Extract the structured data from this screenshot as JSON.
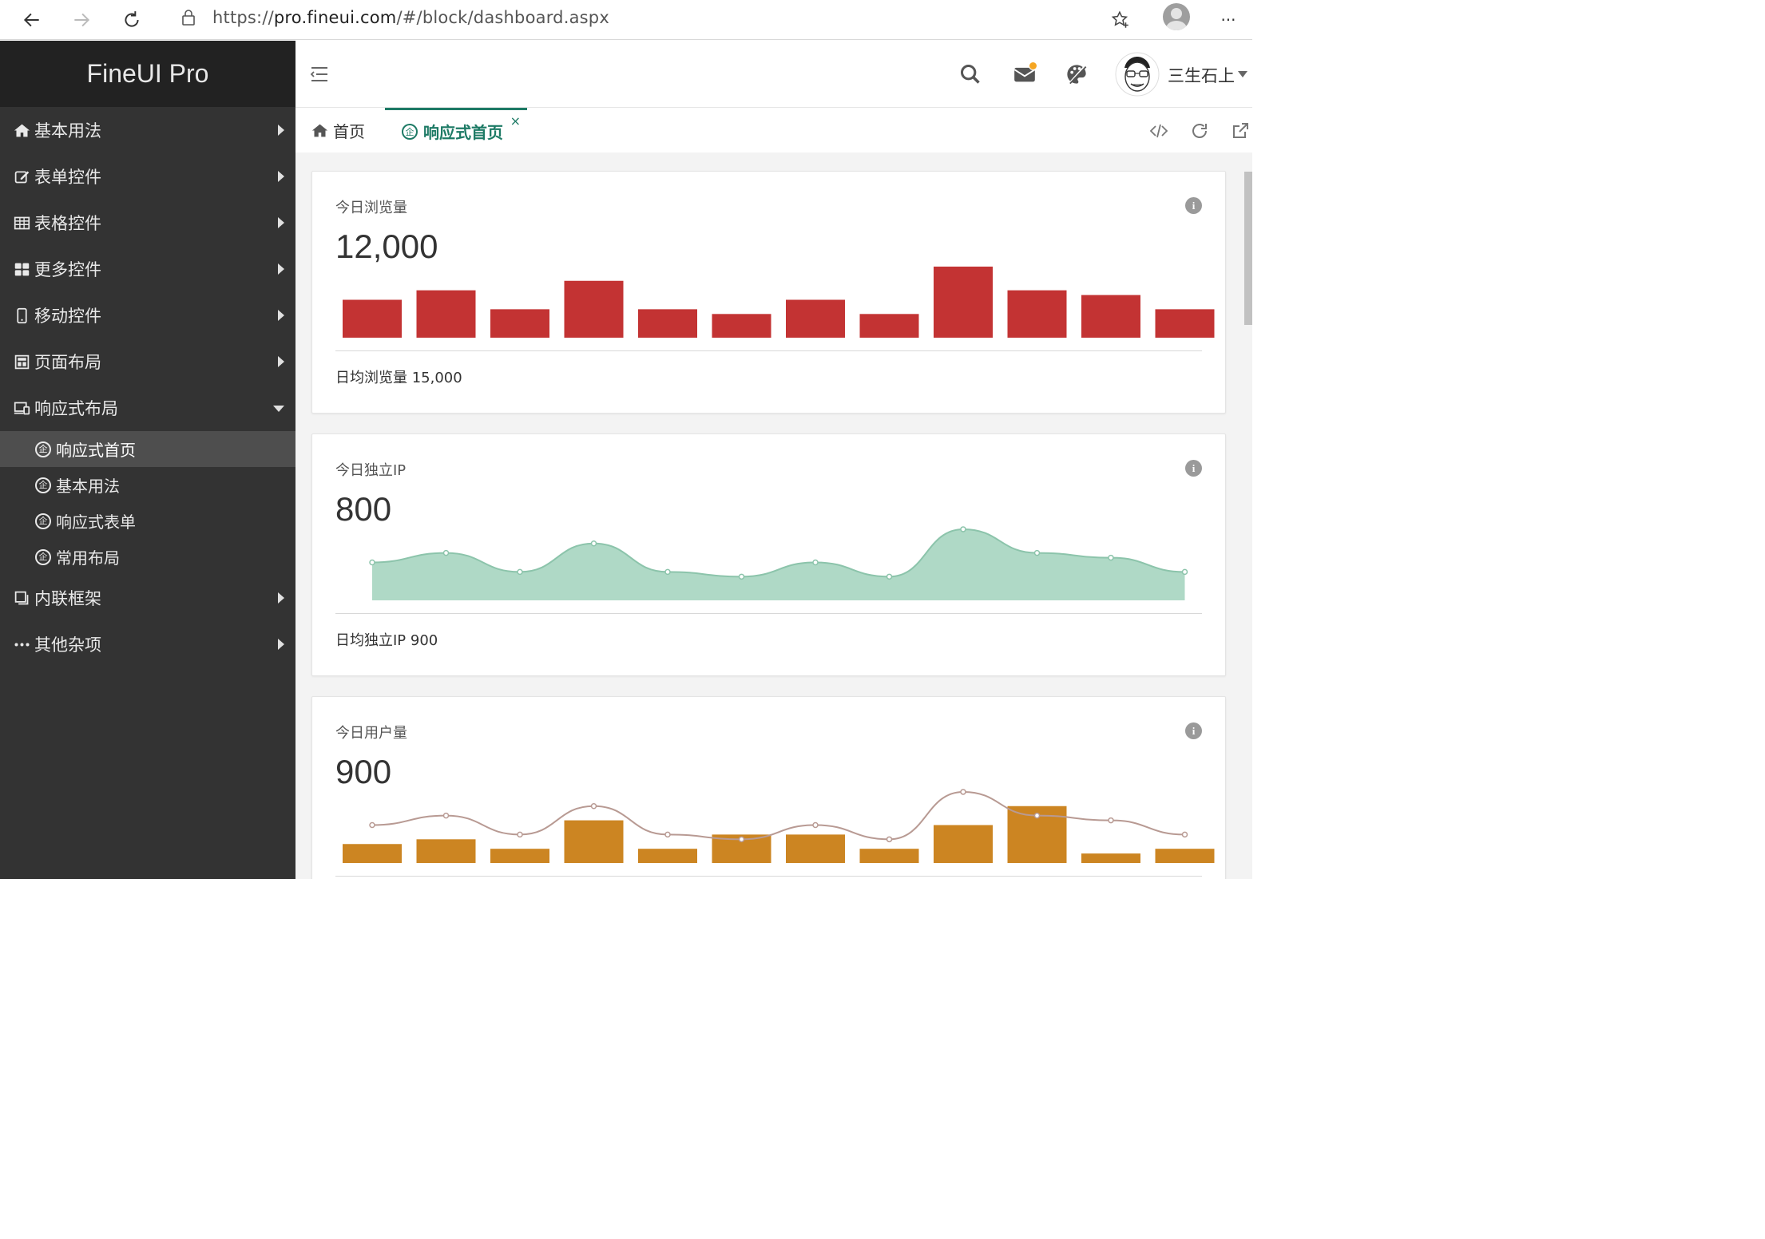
{
  "browser": {
    "url_prefix": "https://",
    "url_host": "pro.fineui.com",
    "url_path": "/#/block/dashboard.aspx",
    "menu_glyph": "···"
  },
  "sidebar": {
    "brand": "FineUI Pro",
    "items": [
      {
        "label": "基本用法",
        "icon": "home-icon"
      },
      {
        "label": "表单控件",
        "icon": "edit-icon"
      },
      {
        "label": "表格控件",
        "icon": "table-icon"
      },
      {
        "label": "更多控件",
        "icon": "grid-icon"
      },
      {
        "label": "移动控件",
        "icon": "mobile-icon"
      },
      {
        "label": "页面布局",
        "icon": "layout-icon"
      },
      {
        "label": "响应式布局",
        "icon": "responsive-icon"
      }
    ],
    "sub_items": [
      {
        "label": "响应式首页",
        "icon_glyph": "企"
      },
      {
        "label": "基本用法",
        "icon_glyph": "企"
      },
      {
        "label": "响应式表单",
        "icon_glyph": "企"
      },
      {
        "label": "常用布局",
        "icon_glyph": "企"
      }
    ],
    "items_after": [
      {
        "label": "内联框架",
        "icon": "window-icon"
      },
      {
        "label": "其他杂项",
        "icon": "more-icon"
      }
    ]
  },
  "header": {
    "user_name": "三生石上"
  },
  "tabs": {
    "home_label": "首页",
    "active_label": "响应式首页",
    "active_icon_glyph": "企",
    "close_glyph": "×"
  },
  "colors": {
    "accent": "#1d7a65",
    "bar_red": "#c33333",
    "area_green": "#afd9c6",
    "area_green_line": "#8cc4ab",
    "bar_orange": "#cc8522",
    "line_brown": "#b89a93"
  },
  "cards": [
    {
      "title": "今日浏览量",
      "value": "12,000",
      "footer": "日均浏览量 15,000",
      "info": "i"
    },
    {
      "title": "今日独立IP",
      "value": "800",
      "footer": "日均独立IP 900",
      "info": "i"
    },
    {
      "title": "今日用户量",
      "value": "900",
      "footer": "",
      "info": "i"
    }
  ],
  "chart_data": [
    {
      "type": "bar",
      "values": [
        8,
        10,
        6,
        12,
        6,
        5,
        8,
        5,
        15,
        10,
        9,
        6
      ],
      "ylim": [
        0,
        16
      ]
    },
    {
      "type": "area",
      "values": [
        8,
        10,
        6,
        12,
        6,
        5,
        8,
        5,
        15,
        10,
        9,
        6
      ],
      "ylim": [
        0,
        16
      ]
    },
    {
      "type": "bar",
      "values": [
        4,
        5,
        3,
        9,
        3,
        6,
        6,
        3,
        8,
        12,
        2,
        3
      ],
      "line_values": [
        8,
        10,
        6,
        12,
        6,
        5,
        8,
        5,
        15,
        10,
        9,
        6
      ],
      "ylim": [
        0,
        16
      ]
    }
  ]
}
